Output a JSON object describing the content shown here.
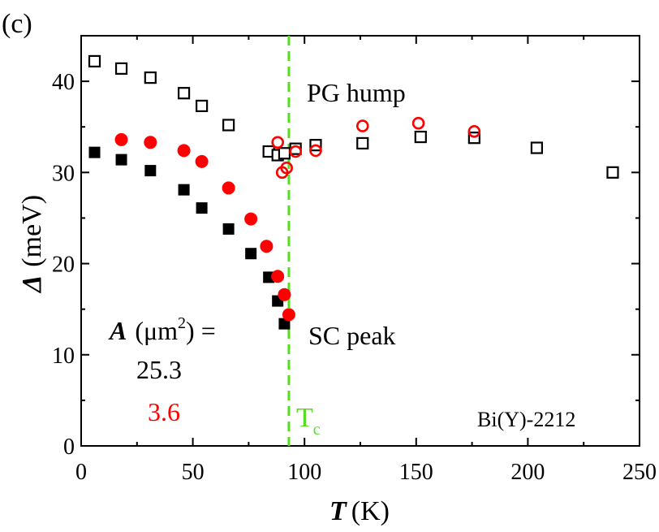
{
  "chart_data": {
    "type": "scatter",
    "panel_label": "(c)",
    "xlabel": {
      "symbol": "T",
      "unit": "(K)"
    },
    "ylabel": {
      "symbol": "Δ",
      "unit": "(meV)"
    },
    "xlim": [
      0,
      250
    ],
    "ylim": [
      0,
      45
    ],
    "xticks": [
      0,
      50,
      100,
      150,
      200,
      250
    ],
    "yticks": [
      0,
      10,
      20,
      30,
      40
    ],
    "grid": false,
    "series": [
      {
        "name": "25.3 PG hump",
        "marker": "open-square",
        "color": "#000000",
        "x": [
          6,
          18,
          31,
          46,
          54,
          66,
          84,
          88,
          91,
          96,
          105,
          126,
          152,
          176,
          204,
          238
        ],
        "y": [
          42.2,
          41.4,
          40.4,
          38.7,
          37.3,
          35.2,
          32.3,
          31.9,
          32.1,
          32.6,
          33.0,
          33.2,
          33.9,
          33.8,
          32.7,
          30.0
        ]
      },
      {
        "name": "25.3 SC peak",
        "marker": "filled-square",
        "color": "#000000",
        "x": [
          6,
          18,
          31,
          46,
          54,
          66,
          76,
          84,
          88,
          91
        ],
        "y": [
          32.2,
          31.4,
          30.2,
          28.1,
          26.1,
          23.8,
          21.1,
          18.5,
          15.9,
          13.4
        ]
      },
      {
        "name": "3.6 PG hump",
        "marker": "open-circle",
        "color": "#ff0000",
        "x": [
          88,
          90,
          92,
          96,
          105,
          126,
          151,
          176
        ],
        "y": [
          33.3,
          30.0,
          30.5,
          32.3,
          32.4,
          35.1,
          35.4,
          34.5
        ]
      },
      {
        "name": "3.6 SC peak",
        "marker": "filled-circle",
        "color": "#ff0000",
        "x": [
          18,
          31,
          46,
          54,
          66,
          76,
          83,
          88,
          91,
          93
        ],
        "y": [
          33.6,
          33.3,
          32.4,
          31.2,
          28.3,
          24.9,
          21.9,
          18.6,
          16.6,
          14.4
        ]
      }
    ],
    "tc_line": {
      "x": 93,
      "label": "T",
      "label_sub": "c",
      "color": "#55dd22"
    },
    "annotations": {
      "pg_hump": "PG hump",
      "sc_peak": "SC peak",
      "material": "Bi(Y)-2212"
    },
    "legend": {
      "area_symbol": "A",
      "area_unit": "(μm",
      "area_exp": "2",
      "area_tail": ") =",
      "entries": [
        {
          "label": "25.3",
          "color": "#000000"
        },
        {
          "label": "3.6",
          "color": "#ff0000"
        }
      ]
    }
  }
}
